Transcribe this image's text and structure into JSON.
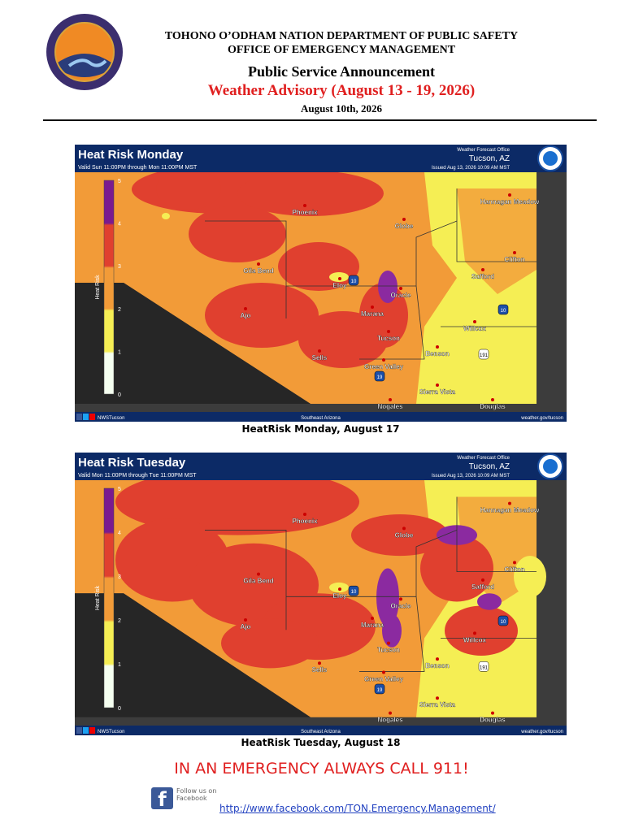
{
  "header": {
    "org_line1": "TOHONO O’ODHAM NATION DEPARTMENT OF PUBLIC SAFETY",
    "org_line2": "OFFICE OF EMERGENCY MANAGEMENT",
    "announcement": "Public Service Announcement",
    "advisory": "Weather Advisory (August 13 - 19, 2026)",
    "date": "August 10th, 2026"
  },
  "maps": [
    {
      "title": "Heat Risk Monday",
      "valid": "Valid Sun 11:00PM through Mon 11:00PM MST",
      "office": "Weather Forecast Office",
      "office_city": "Tucson, AZ",
      "issued": "Issued Aug 13, 2026 10:09 AM MST",
      "scale_label": "Heat Risk",
      "scale_ticks": [
        "5",
        "4",
        "3",
        "2",
        "1",
        "0"
      ],
      "cities": [
        "Hannagan Meadow",
        "Phoenix",
        "Globe",
        "Clifton",
        "Gila Bend",
        "Safford",
        "Eloy",
        "Oracle",
        "Ajo",
        "Marana",
        "Willcox",
        "Tucson",
        "Benson",
        "Sells",
        "Green Valley",
        "Sierra Vista",
        "Nogales",
        "Douglas"
      ],
      "shields": [
        "10",
        "10",
        "19",
        "191"
      ],
      "footer_left": "NWSTucson",
      "footer_center": "Southeast Arizona",
      "footer_right": "weather.gov/tucson",
      "caption": "HeatRisk Monday, August 17"
    },
    {
      "title": "Heat Risk Tuesday",
      "valid": "Valid Mon 11:00PM through Tue 11:00PM MST",
      "office": "Weather Forecast Office",
      "office_city": "Tucson, AZ",
      "issued": "Issued Aug 13, 2026 10:09 AM MST",
      "scale_label": "Heat Risk",
      "scale_ticks": [
        "5",
        "4",
        "3",
        "2",
        "1",
        "0"
      ],
      "cities": [
        "Hannagan Meadow",
        "Phoenix",
        "Globe",
        "Clifton",
        "Gila Bend",
        "Safford",
        "Eloy",
        "Oracle",
        "Ajo",
        "Marana",
        "Willcox",
        "Tucson",
        "Benson",
        "Sells",
        "Green Valley",
        "Sierra Vista",
        "Nogales",
        "Douglas"
      ],
      "shields": [
        "10",
        "10",
        "19",
        "191"
      ],
      "footer_left": "NWSTucson",
      "footer_center": "Southeast Arizona",
      "footer_right": "weather.gov/tucson",
      "caption": "HeatRisk Tuesday, August 18"
    }
  ],
  "footer": {
    "emergency": "IN AN EMERGENCY ALWAYS CALL 911!",
    "follow": "Follow us on Facebook",
    "link": "http://www.facebook.com/TON.Emergency.Management/"
  }
}
